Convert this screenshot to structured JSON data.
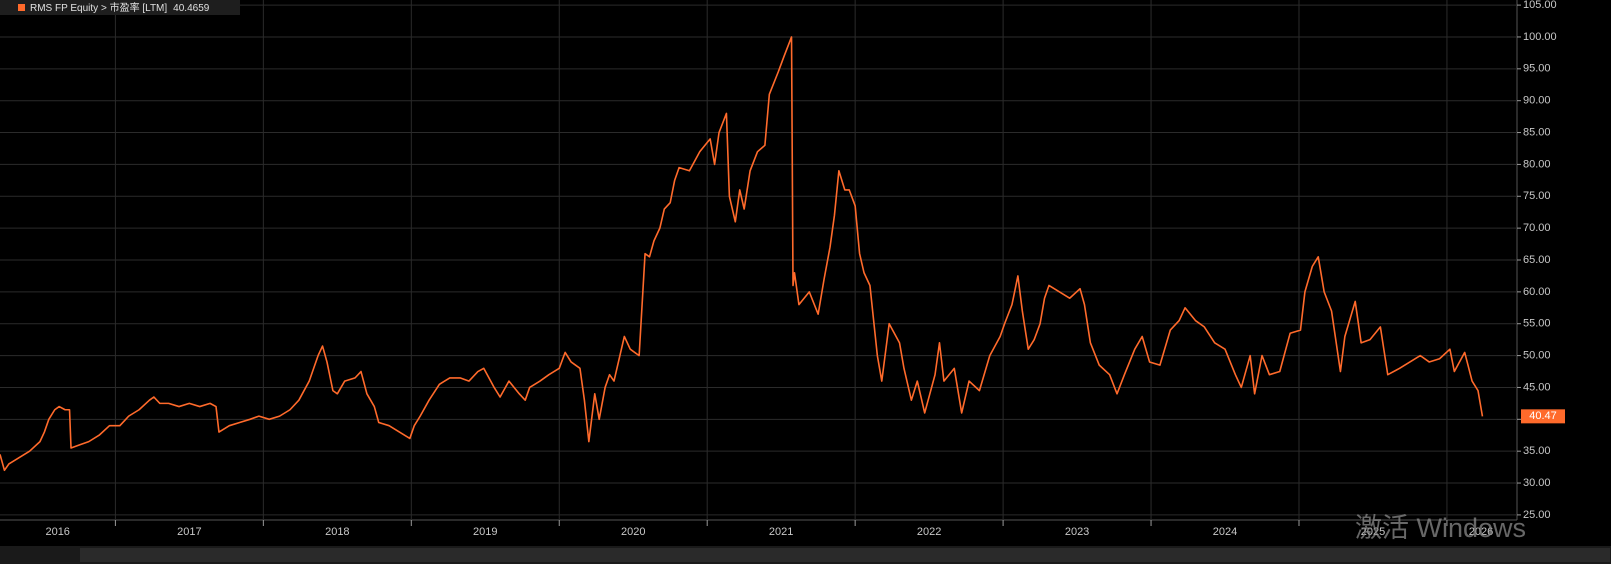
{
  "chart_data": {
    "type": "line",
    "series": [
      {
        "name": "RMS FP Equity > 市盈率 [LTM]",
        "color": "#ff6a2b",
        "values": [
          34.5,
          32,
          33,
          34,
          35,
          36.5,
          38,
          40,
          41.5,
          42,
          41.5,
          41.5,
          35.5,
          36,
          36.5,
          37.5,
          39,
          39,
          40.5,
          41.5,
          43,
          43.5,
          42.5,
          42.5,
          42,
          42.5,
          42,
          42.5,
          42,
          38,
          39,
          39.5,
          40,
          40.5,
          40,
          40.5,
          41.5,
          43,
          46,
          50,
          51.5,
          49,
          44.5,
          44,
          46,
          46.5,
          47.5,
          44,
          42,
          39.5,
          39,
          38,
          37,
          39,
          40.5,
          43,
          45.5,
          46.5,
          46.5,
          46,
          47.5,
          48,
          45,
          43.5,
          46,
          44,
          43,
          45,
          46,
          47,
          48,
          50.5,
          49,
          48,
          43,
          36.5,
          44,
          40,
          45,
          47,
          46,
          50,
          53,
          51,
          50,
          66,
          65.5,
          68,
          70,
          73,
          74,
          77.5,
          79.5,
          79,
          82,
          84,
          80,
          85,
          88,
          75,
          71,
          76,
          73,
          79,
          82,
          83,
          91,
          94.5,
          97,
          100,
          61,
          63,
          58,
          60,
          56.5,
          62,
          67,
          72,
          79,
          76,
          76,
          73.5,
          66,
          63,
          61,
          50,
          46,
          55,
          52,
          48,
          43,
          46,
          41,
          47,
          52,
          46,
          48,
          41,
          46,
          44.5,
          50,
          53,
          55,
          58,
          62.5,
          57,
          51,
          52.5,
          55,
          59,
          61,
          60,
          59,
          60.5,
          58,
          52,
          48.5,
          47,
          44,
          47,
          51,
          53,
          49,
          48.5,
          54,
          55.5,
          57.5,
          55.5,
          54.5,
          52,
          51,
          47,
          45,
          50,
          44,
          50,
          47,
          47.5,
          53.5,
          54,
          60,
          64,
          65.5,
          60,
          57,
          47.5,
          53,
          58.5,
          52,
          52.5,
          54.5,
          47,
          48,
          49,
          50,
          49,
          49.5,
          51,
          47.5,
          50.5,
          46,
          44.5,
          40.4659
        ],
        "last_value_label": "40.47"
      }
    ],
    "x": [
      2016.22,
      2016.25,
      2016.28,
      2016.35,
      2016.42,
      2016.49,
      2016.52,
      2016.55,
      2016.59,
      2016.62,
      2016.66,
      2016.69,
      2016.7,
      2016.76,
      2016.82,
      2016.89,
      2016.96,
      2017.03,
      2017.09,
      2017.16,
      2017.23,
      2017.26,
      2017.3,
      2017.36,
      2017.43,
      2017.5,
      2017.57,
      2017.64,
      2017.68,
      2017.7,
      2017.77,
      2017.84,
      2017.91,
      2017.97,
      2018.04,
      2018.11,
      2018.18,
      2018.24,
      2018.31,
      2018.37,
      2018.4,
      2018.43,
      2018.47,
      2018.5,
      2018.55,
      2018.62,
      2018.66,
      2018.7,
      2018.75,
      2018.78,
      2018.85,
      2018.92,
      2018.99,
      2019.02,
      2019.06,
      2019.12,
      2019.19,
      2019.26,
      2019.33,
      2019.39,
      2019.45,
      2019.49,
      2019.56,
      2019.6,
      2019.66,
      2019.73,
      2019.77,
      2019.8,
      2019.87,
      2019.93,
      2020.0,
      2020.04,
      2020.08,
      2020.14,
      2020.17,
      2020.2,
      2020.24,
      2020.27,
      2020.31,
      2020.34,
      2020.37,
      2020.41,
      2020.44,
      2020.48,
      2020.54,
      2020.58,
      2020.61,
      2020.64,
      2020.68,
      2020.71,
      2020.75,
      2020.78,
      2020.81,
      2020.88,
      2020.95,
      2021.02,
      2021.05,
      2021.08,
      2021.13,
      2021.15,
      2021.19,
      2021.22,
      2021.25,
      2021.29,
      2021.34,
      2021.39,
      2021.42,
      2021.48,
      2021.52,
      2021.57,
      2021.58,
      2021.59,
      2021.62,
      2021.69,
      2021.75,
      2021.79,
      2021.83,
      2021.86,
      2021.89,
      2021.93,
      2021.96,
      2022.0,
      2022.03,
      2022.06,
      2022.1,
      2022.15,
      2022.18,
      2022.23,
      2022.3,
      2022.33,
      2022.38,
      2022.42,
      2022.47,
      2022.54,
      2022.57,
      2022.6,
      2022.67,
      2022.72,
      2022.77,
      2022.84,
      2022.91,
      2022.98,
      2023.01,
      2023.06,
      2023.1,
      2023.13,
      2023.17,
      2023.21,
      2023.25,
      2023.28,
      2023.31,
      2023.38,
      2023.45,
      2023.52,
      2023.55,
      2023.59,
      2023.65,
      2023.72,
      2023.77,
      2023.82,
      2023.89,
      2023.94,
      2023.99,
      2024.06,
      2024.13,
      2024.19,
      2024.23,
      2024.3,
      2024.36,
      2024.43,
      2024.5,
      2024.57,
      2024.61,
      2024.67,
      2024.7,
      2024.75,
      2024.8,
      2024.87,
      2024.94,
      2025.01,
      2025.04,
      2025.09,
      2025.13,
      2025.17,
      2025.22,
      2025.28,
      2025.31,
      2025.38,
      2025.42,
      2025.48,
      2025.55,
      2025.6,
      2025.68,
      2025.75,
      2025.82,
      2025.88,
      2025.95,
      2026.02,
      2026.05,
      2026.12,
      2026.17,
      2026.21,
      2026.24
    ],
    "xlim": [
      2016.22,
      2026.46
    ],
    "xticks": [
      {
        "value": 2016.61,
        "label": "2016"
      },
      {
        "value": 2017.5,
        "label": "2017"
      },
      {
        "value": 2018.5,
        "label": "2018"
      },
      {
        "value": 2019.5,
        "label": "2019"
      },
      {
        "value": 2020.5,
        "label": "2020"
      },
      {
        "value": 2021.5,
        "label": "2021"
      },
      {
        "value": 2022.5,
        "label": "2022"
      },
      {
        "value": 2023.5,
        "label": "2023"
      },
      {
        "value": 2024.5,
        "label": "2024"
      },
      {
        "value": 2025.5,
        "label": "2025"
      },
      {
        "value": 2026.23,
        "label": "2026"
      }
    ],
    "xgrid": [
      2017,
      2018,
      2019,
      2020,
      2021,
      2022,
      2023,
      2024,
      2025,
      2026
    ],
    "ylim": [
      25,
      105
    ],
    "yticks": [
      {
        "value": 25,
        "label": "25.00"
      },
      {
        "value": 30,
        "label": "30.00"
      },
      {
        "value": 35,
        "label": "35.00"
      },
      {
        "value": 40,
        "label": "40.00"
      },
      {
        "value": 45,
        "label": "45.00"
      },
      {
        "value": 50,
        "label": "50.00"
      },
      {
        "value": 55,
        "label": "55.00"
      },
      {
        "value": 60,
        "label": "60.00"
      },
      {
        "value": 65,
        "label": "65.00"
      },
      {
        "value": 70,
        "label": "70.00"
      },
      {
        "value": 75,
        "label": "75.00"
      },
      {
        "value": 80,
        "label": "80.00"
      },
      {
        "value": 85,
        "label": "85.00"
      },
      {
        "value": 90,
        "label": "90.00"
      },
      {
        "value": 95,
        "label": "95.00"
      },
      {
        "value": 100,
        "label": "100.00"
      },
      {
        "value": 105,
        "label": "105.00"
      }
    ],
    "grid": true,
    "watermark": "激活 Windows"
  }
}
